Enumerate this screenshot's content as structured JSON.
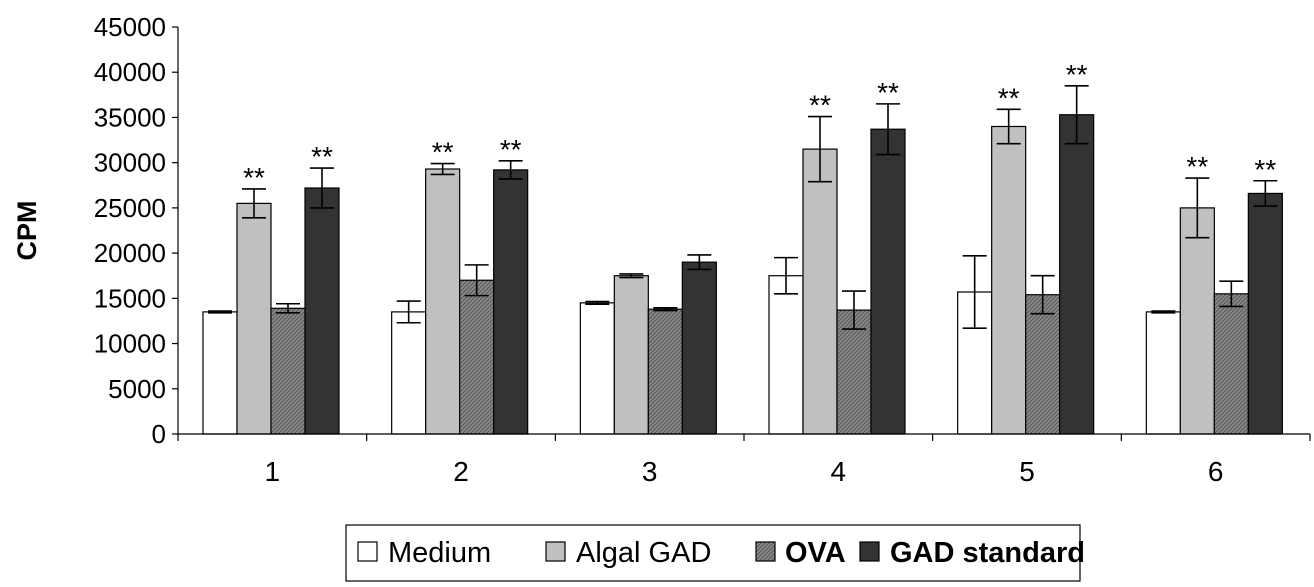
{
  "chart_data": {
    "type": "bar",
    "title": "",
    "xlabel": "",
    "ylabel": "CPM",
    "ylim": [
      0,
      45000
    ],
    "yticks": [
      0,
      5000,
      10000,
      15000,
      20000,
      25000,
      30000,
      35000,
      40000,
      45000
    ],
    "yticks_text": [
      "0",
      "5000",
      "10000",
      "15000",
      "20000",
      "25000",
      "30000",
      "35000",
      "40000",
      "45000"
    ],
    "categories": [
      "1",
      "2",
      "3",
      "4",
      "5",
      "6"
    ],
    "legend_position": "bottom",
    "significance_marker": "**",
    "series": [
      {
        "name": "Medium",
        "color": "#ffffff",
        "values": [
          13500,
          13500,
          14500,
          17500,
          15700,
          13500
        ],
        "errors": [
          100,
          1200,
          150,
          2000,
          4000,
          100
        ],
        "significant": [
          false,
          false,
          false,
          false,
          false,
          false
        ]
      },
      {
        "name": "Algal GAD",
        "color": "#c0c0c0",
        "values": [
          25500,
          29300,
          17500,
          31500,
          34000,
          25000
        ],
        "errors": [
          1600,
          600,
          200,
          3600,
          1900,
          3300
        ],
        "significant": [
          true,
          true,
          false,
          true,
          true,
          true
        ]
      },
      {
        "name": "OVA",
        "color": "#969696",
        "pattern": "hatch",
        "values": [
          13900,
          17000,
          13800,
          13700,
          15400,
          15500
        ],
        "errors": [
          500,
          1700,
          150,
          2100,
          2100,
          1400
        ],
        "significant": [
          false,
          false,
          false,
          false,
          false,
          false
        ]
      },
      {
        "name": "GAD standard",
        "color": "#333333",
        "values": [
          27200,
          29200,
          19000,
          33700,
          35300,
          26600
        ],
        "errors": [
          2200,
          1000,
          800,
          2800,
          3200,
          1400
        ],
        "significant": [
          true,
          true,
          false,
          true,
          true,
          true
        ]
      }
    ]
  }
}
